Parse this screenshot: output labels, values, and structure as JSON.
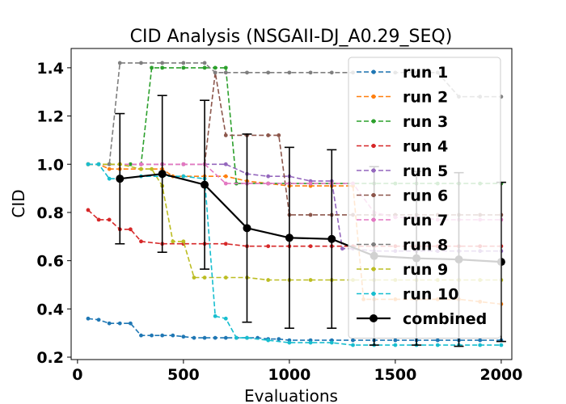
{
  "chart_data": {
    "type": "line",
    "title": "CID Analysis (NSGAII-DJ_A0.29_SEQ)",
    "xlabel": "Evaluations",
    "ylabel": "CID",
    "xlim": [
      -30,
      2050
    ],
    "ylim": [
      0.19,
      1.48
    ],
    "xticks": [
      0,
      500,
      1000,
      1500,
      2000
    ],
    "yticks": [
      0.2,
      0.4,
      0.6,
      0.8,
      1.0,
      1.2,
      1.4
    ],
    "xtick_labels": [
      "0",
      "500",
      "1000",
      "1500",
      "2000"
    ],
    "ytick_labels": [
      "0.2",
      "0.4",
      "0.6",
      "0.8",
      "1.0",
      "1.2",
      "1.4"
    ],
    "grid": false,
    "legend_position": "upper-right",
    "series": [
      {
        "name": "run 1",
        "color": "#1f77b4",
        "points": [
          [
            50,
            0.36
          ],
          [
            100,
            0.355
          ],
          [
            150,
            0.34
          ],
          [
            200,
            0.34
          ],
          [
            250,
            0.34
          ],
          [
            300,
            0.29
          ],
          [
            350,
            0.29
          ],
          [
            400,
            0.29
          ],
          [
            450,
            0.29
          ],
          [
            500,
            0.285
          ],
          [
            550,
            0.28
          ],
          [
            600,
            0.28
          ],
          [
            650,
            0.28
          ],
          [
            700,
            0.28
          ],
          [
            750,
            0.28
          ],
          [
            800,
            0.28
          ],
          [
            850,
            0.28
          ],
          [
            900,
            0.275
          ],
          [
            950,
            0.275
          ],
          [
            1000,
            0.27
          ],
          [
            1100,
            0.27
          ],
          [
            1200,
            0.27
          ],
          [
            1300,
            0.27
          ],
          [
            1400,
            0.27
          ],
          [
            1500,
            0.27
          ],
          [
            1600,
            0.27
          ],
          [
            1700,
            0.27
          ],
          [
            1800,
            0.27
          ],
          [
            1900,
            0.27
          ],
          [
            2000,
            0.27
          ]
        ]
      },
      {
        "name": "run 2",
        "color": "#ff7f0e",
        "points": [
          [
            50,
            1.0
          ],
          [
            100,
            1.0
          ],
          [
            150,
            0.98
          ],
          [
            200,
            0.98
          ],
          [
            300,
            0.98
          ],
          [
            400,
            0.98
          ],
          [
            450,
            0.95
          ],
          [
            500,
            0.95
          ],
          [
            600,
            0.95
          ],
          [
            700,
            0.95
          ],
          [
            800,
            0.93
          ],
          [
            900,
            0.92
          ],
          [
            1000,
            0.91
          ],
          [
            1100,
            0.91
          ],
          [
            1200,
            0.91
          ],
          [
            1300,
            0.91
          ],
          [
            1350,
            0.44
          ],
          [
            1400,
            0.44
          ],
          [
            1500,
            0.44
          ],
          [
            1600,
            0.44
          ],
          [
            1700,
            0.44
          ],
          [
            1800,
            0.44
          ],
          [
            1900,
            0.43
          ],
          [
            2000,
            0.42
          ]
        ]
      },
      {
        "name": "run 3",
        "color": "#2ca02c",
        "points": [
          [
            50,
            1.0
          ],
          [
            100,
            1.0
          ],
          [
            150,
            1.0
          ],
          [
            200,
            1.0
          ],
          [
            250,
            1.0
          ],
          [
            300,
            1.0
          ],
          [
            350,
            1.4
          ],
          [
            400,
            1.4
          ],
          [
            500,
            1.4
          ],
          [
            600,
            1.4
          ],
          [
            650,
            1.4
          ],
          [
            700,
            1.4
          ],
          [
            750,
            0.92
          ],
          [
            800,
            0.92
          ],
          [
            900,
            0.92
          ],
          [
            1000,
            0.92
          ],
          [
            1100,
            0.92
          ],
          [
            1200,
            0.92
          ],
          [
            1300,
            0.92
          ],
          [
            1400,
            0.92
          ],
          [
            1500,
            0.92
          ],
          [
            1600,
            0.92
          ],
          [
            1700,
            0.92
          ],
          [
            1800,
            0.92
          ],
          [
            1900,
            0.92
          ],
          [
            2000,
            0.92
          ]
        ]
      },
      {
        "name": "run 4",
        "color": "#d62728",
        "points": [
          [
            50,
            0.81
          ],
          [
            100,
            0.77
          ],
          [
            150,
            0.77
          ],
          [
            200,
            0.73
          ],
          [
            250,
            0.73
          ],
          [
            300,
            0.68
          ],
          [
            400,
            0.67
          ],
          [
            500,
            0.67
          ],
          [
            600,
            0.67
          ],
          [
            700,
            0.67
          ],
          [
            800,
            0.66
          ],
          [
            900,
            0.66
          ],
          [
            1000,
            0.66
          ],
          [
            1100,
            0.66
          ],
          [
            1200,
            0.66
          ],
          [
            1300,
            0.66
          ],
          [
            1400,
            0.66
          ],
          [
            1500,
            0.66
          ],
          [
            1600,
            0.66
          ],
          [
            1700,
            0.66
          ],
          [
            1800,
            0.66
          ],
          [
            1900,
            0.66
          ],
          [
            2000,
            0.66
          ]
        ]
      },
      {
        "name": "run 5",
        "color": "#9467bd",
        "points": [
          [
            50,
            1.0
          ],
          [
            100,
            1.0
          ],
          [
            200,
            1.0
          ],
          [
            300,
            1.0
          ],
          [
            400,
            1.0
          ],
          [
            500,
            1.0
          ],
          [
            600,
            1.0
          ],
          [
            700,
            1.0
          ],
          [
            800,
            0.96
          ],
          [
            900,
            0.95
          ],
          [
            1000,
            0.95
          ],
          [
            1100,
            0.93
          ],
          [
            1200,
            0.93
          ],
          [
            1250,
            0.65
          ],
          [
            1300,
            0.65
          ],
          [
            1400,
            0.64
          ],
          [
            1500,
            0.64
          ],
          [
            1600,
            0.64
          ],
          [
            1700,
            0.64
          ],
          [
            1800,
            0.64
          ],
          [
            1900,
            0.64
          ],
          [
            2000,
            0.64
          ]
        ]
      },
      {
        "name": "run 6",
        "color": "#8c564b",
        "points": [
          [
            50,
            1.0
          ],
          [
            100,
            1.0
          ],
          [
            200,
            1.0
          ],
          [
            300,
            1.0
          ],
          [
            400,
            1.0
          ],
          [
            500,
            1.0
          ],
          [
            600,
            1.0
          ],
          [
            650,
            1.38
          ],
          [
            700,
            1.12
          ],
          [
            800,
            1.12
          ],
          [
            900,
            1.12
          ],
          [
            950,
            1.12
          ],
          [
            1000,
            0.79
          ],
          [
            1100,
            0.79
          ],
          [
            1200,
            0.79
          ],
          [
            1300,
            0.79
          ],
          [
            1400,
            0.79
          ],
          [
            1500,
            0.79
          ],
          [
            1600,
            0.79
          ],
          [
            1700,
            0.79
          ],
          [
            1800,
            0.79
          ],
          [
            1900,
            0.79
          ],
          [
            2000,
            0.79
          ]
        ]
      },
      {
        "name": "run 7",
        "color": "#e377c2",
        "points": [
          [
            50,
            1.0
          ],
          [
            100,
            1.0
          ],
          [
            200,
            1.0
          ],
          [
            300,
            1.0
          ],
          [
            400,
            1.0
          ],
          [
            500,
            1.0
          ],
          [
            600,
            1.0
          ],
          [
            700,
            0.92
          ],
          [
            800,
            0.92
          ],
          [
            900,
            0.92
          ],
          [
            1000,
            0.92
          ],
          [
            1100,
            0.92
          ],
          [
            1200,
            0.92
          ],
          [
            1300,
            0.92
          ],
          [
            1400,
            0.8
          ],
          [
            1500,
            0.78
          ],
          [
            1600,
            0.78
          ],
          [
            1700,
            0.77
          ],
          [
            1800,
            0.77
          ],
          [
            1900,
            0.77
          ],
          [
            2000,
            0.77
          ]
        ]
      },
      {
        "name": "run 8",
        "color": "#7f7f7f",
        "points": [
          [
            50,
            1.0
          ],
          [
            100,
            1.0
          ],
          [
            150,
            1.0
          ],
          [
            200,
            1.42
          ],
          [
            300,
            1.42
          ],
          [
            400,
            1.42
          ],
          [
            500,
            1.42
          ],
          [
            600,
            1.42
          ],
          [
            650,
            1.38
          ],
          [
            700,
            1.38
          ],
          [
            800,
            1.38
          ],
          [
            900,
            1.38
          ],
          [
            1000,
            1.38
          ],
          [
            1100,
            1.38
          ],
          [
            1200,
            1.38
          ],
          [
            1300,
            1.38
          ],
          [
            1400,
            1.38
          ],
          [
            1500,
            1.38
          ],
          [
            1600,
            1.38
          ],
          [
            1700,
            1.38
          ],
          [
            1800,
            1.28
          ],
          [
            1900,
            1.28
          ],
          [
            2000,
            1.28
          ]
        ]
      },
      {
        "name": "run 9",
        "color": "#bcbd22",
        "points": [
          [
            50,
            1.0
          ],
          [
            100,
            1.0
          ],
          [
            200,
            1.0
          ],
          [
            300,
            0.98
          ],
          [
            350,
            0.98
          ],
          [
            400,
            0.91
          ],
          [
            450,
            0.68
          ],
          [
            500,
            0.68
          ],
          [
            550,
            0.53
          ],
          [
            600,
            0.53
          ],
          [
            700,
            0.53
          ],
          [
            800,
            0.53
          ],
          [
            900,
            0.52
          ],
          [
            1000,
            0.52
          ],
          [
            1100,
            0.52
          ],
          [
            1200,
            0.52
          ],
          [
            1300,
            0.52
          ],
          [
            1400,
            0.52
          ],
          [
            1500,
            0.52
          ],
          [
            1600,
            0.52
          ],
          [
            1700,
            0.52
          ],
          [
            1800,
            0.52
          ],
          [
            1900,
            0.52
          ],
          [
            2000,
            0.52
          ]
        ]
      },
      {
        "name": "run 10",
        "color": "#17becf",
        "points": [
          [
            50,
            1.0
          ],
          [
            100,
            1.0
          ],
          [
            150,
            0.94
          ],
          [
            200,
            0.94
          ],
          [
            300,
            0.95
          ],
          [
            400,
            0.95
          ],
          [
            500,
            0.95
          ],
          [
            600,
            0.94
          ],
          [
            650,
            0.37
          ],
          [
            700,
            0.36
          ],
          [
            750,
            0.28
          ],
          [
            800,
            0.28
          ],
          [
            900,
            0.27
          ],
          [
            1000,
            0.26
          ],
          [
            1100,
            0.26
          ],
          [
            1200,
            0.26
          ],
          [
            1300,
            0.25
          ],
          [
            1400,
            0.25
          ],
          [
            1500,
            0.25
          ],
          [
            1600,
            0.25
          ],
          [
            1700,
            0.25
          ],
          [
            1800,
            0.25
          ],
          [
            1900,
            0.25
          ],
          [
            2000,
            0.25
          ]
        ]
      },
      {
        "name": "combined",
        "color": "#000000",
        "points": [
          [
            200,
            0.94
          ],
          [
            400,
            0.96
          ],
          [
            600,
            0.915
          ],
          [
            800,
            0.735
          ],
          [
            1000,
            0.695
          ],
          [
            1200,
            0.69
          ],
          [
            1400,
            0.62
          ],
          [
            1600,
            0.61
          ],
          [
            1800,
            0.605
          ],
          [
            2000,
            0.595
          ]
        ],
        "errors": [
          0.27,
          0.325,
          0.35,
          0.39,
          0.375,
          0.37,
          0.37,
          0.36,
          0.36,
          0.33
        ]
      }
    ]
  }
}
